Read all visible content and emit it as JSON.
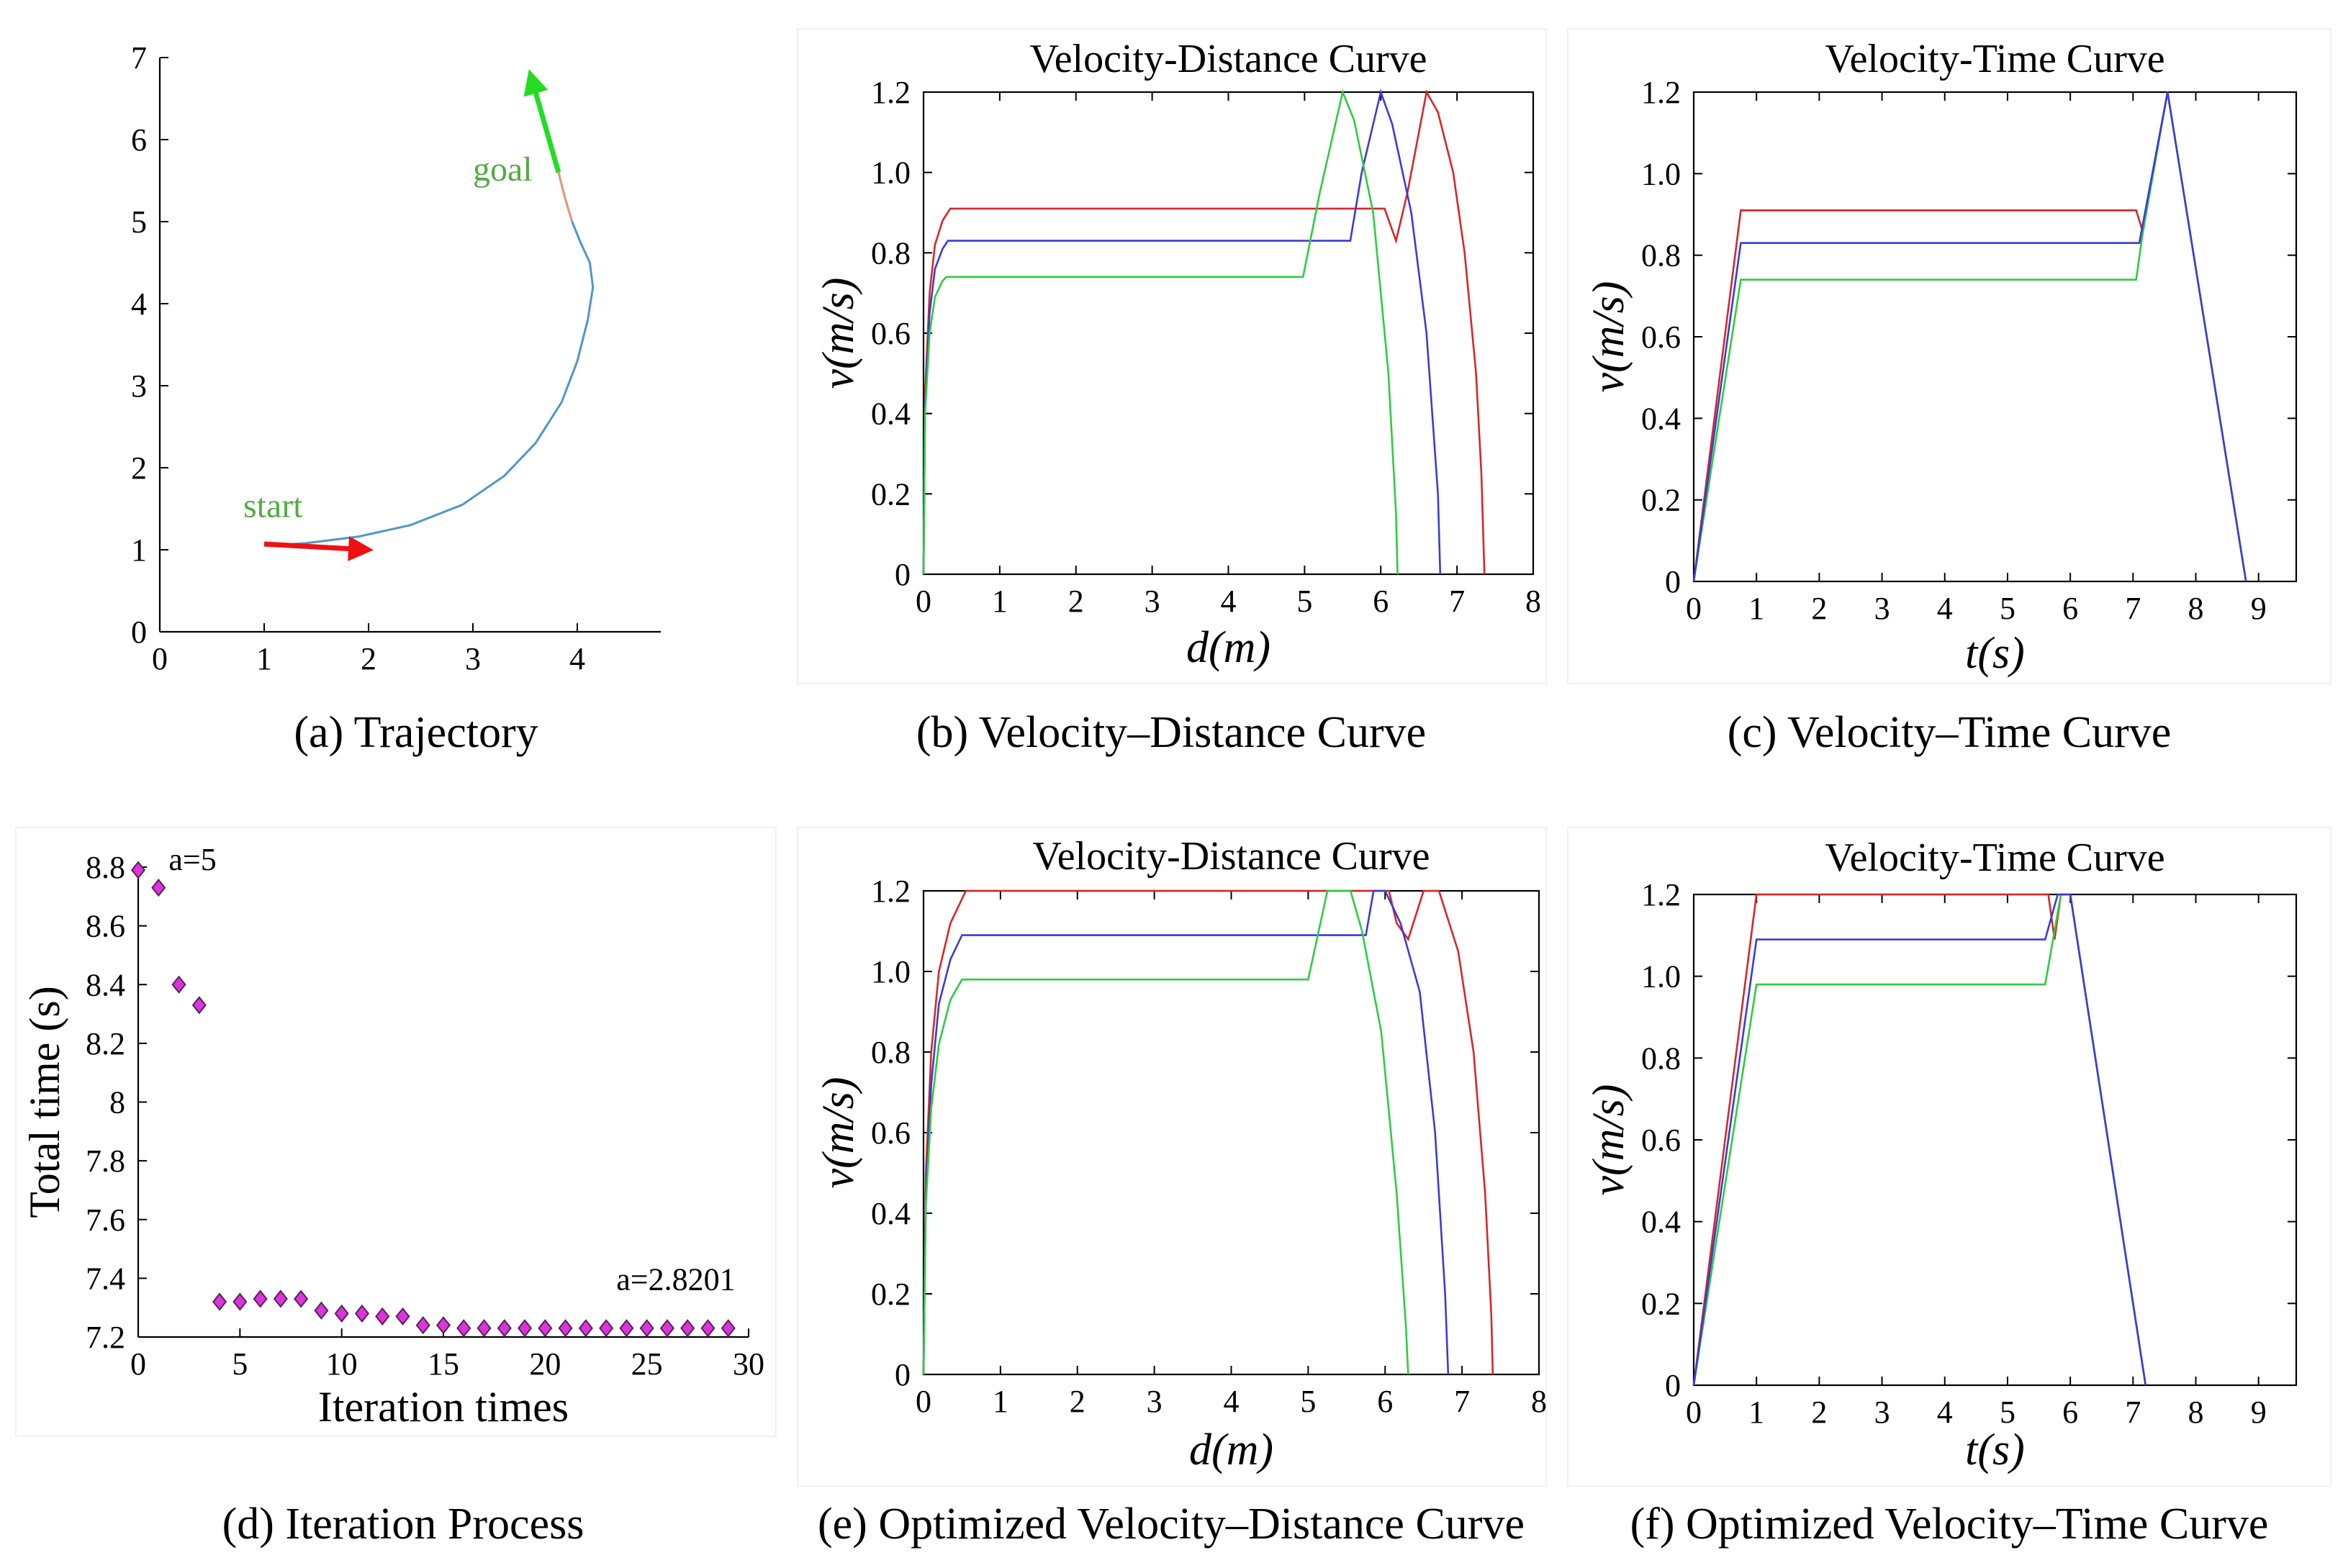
{
  "figure": {
    "type": "multi-panel figure"
  },
  "captions": {
    "a": "(a) Trajectory",
    "b": "(b) Velocity–Distance Curve",
    "c": "(c) Velocity–Time Curve",
    "d": "(d) Iteration Process",
    "e": "(e) Optimized Velocity–Distance Curve",
    "f": "(f) Optimized Velocity–Time Curve"
  },
  "colors": {
    "red": "#d62728",
    "green": "#2ecc40",
    "blue": "#3b3bd6",
    "traj": "#4f97c8",
    "arrow_red": "#ee1111",
    "arrow_green": "#22dd22",
    "marker": "#dd33dd",
    "label_green": "#55aa44"
  },
  "chart_data": [
    {
      "id": "a",
      "type": "line",
      "title": "",
      "xlabel": "",
      "ylabel": "",
      "xlim": [
        0,
        4.8
      ],
      "ylim": [
        0,
        7
      ],
      "xticks": [
        0,
        1,
        2,
        3,
        4
      ],
      "xtick_labels": [
        "0",
        "1",
        "2",
        "3",
        "4"
      ],
      "yticks": [
        0,
        1,
        2,
        3,
        4,
        5,
        6,
        7
      ],
      "ytick_labels": [
        "0",
        "1",
        "2",
        "3",
        "4",
        "5",
        "6",
        "7"
      ],
      "annotations": [
        {
          "text": "start",
          "x": 0.8,
          "y": 1.4
        },
        {
          "text": "goal",
          "x": 3.0,
          "y": 5.5
        }
      ],
      "series": [
        {
          "name": "trajectory",
          "x": [
            1.0,
            1.4,
            1.9,
            2.4,
            2.9,
            3.3,
            3.6,
            3.85,
            4.0,
            4.1,
            4.15,
            4.12,
            4.03,
            3.95,
            3.88,
            3.82
          ],
          "y": [
            1.05,
            1.08,
            1.16,
            1.3,
            1.55,
            1.9,
            2.3,
            2.8,
            3.3,
            3.8,
            4.2,
            4.5,
            4.75,
            5.0,
            5.3,
            5.6
          ]
        }
      ],
      "arrows": [
        {
          "name": "start-arrow",
          "from": [
            1.0,
            1.07
          ],
          "to": [
            2.0,
            1.0
          ]
        },
        {
          "name": "goal-arrow",
          "from": [
            3.82,
            5.6
          ],
          "to": [
            3.55,
            6.8
          ]
        }
      ]
    },
    {
      "id": "b",
      "type": "line",
      "title": "Velocity-Distance Curve",
      "xlabel": "d(m)",
      "ylabel": "v(m/s)",
      "xlim": [
        0,
        8
      ],
      "ylim": [
        0,
        1.2
      ],
      "xticks": [
        0,
        1,
        2,
        3,
        4,
        5,
        6,
        7,
        8
      ],
      "xtick_labels": [
        "0",
        "1",
        "2",
        "3",
        "4",
        "5",
        "6",
        "7",
        "8"
      ],
      "yticks": [
        0,
        0.2,
        0.4,
        0.6,
        0.8,
        1.0,
        1.2
      ],
      "ytick_labels": [
        "0",
        "0.2",
        "0.4",
        "0.6",
        "0.8",
        "1.0",
        "1.2"
      ],
      "series": [
        {
          "name": "red",
          "x": [
            0,
            0.02,
            0.08,
            0.15,
            0.25,
            0.35,
            6.05,
            6.2,
            6.35,
            6.6,
            6.75,
            6.95,
            7.1,
            7.25,
            7.32,
            7.36
          ],
          "y": [
            0,
            0.45,
            0.7,
            0.82,
            0.88,
            0.91,
            0.91,
            0.83,
            0.95,
            1.2,
            1.15,
            1.0,
            0.8,
            0.5,
            0.25,
            0
          ]
        },
        {
          "name": "blue",
          "x": [
            0,
            0.02,
            0.08,
            0.15,
            0.25,
            0.32,
            5.6,
            5.75,
            6.0,
            6.15,
            6.4,
            6.6,
            6.75,
            6.78
          ],
          "y": [
            0,
            0.42,
            0.65,
            0.76,
            0.81,
            0.83,
            0.83,
            1.0,
            1.2,
            1.12,
            0.9,
            0.6,
            0.2,
            0
          ]
        },
        {
          "name": "green",
          "x": [
            0,
            0.02,
            0.08,
            0.15,
            0.25,
            0.3,
            4.98,
            5.2,
            5.5,
            5.65,
            5.9,
            6.1,
            6.2,
            6.22
          ],
          "y": [
            0,
            0.4,
            0.6,
            0.69,
            0.73,
            0.74,
            0.74,
            0.95,
            1.2,
            1.13,
            0.9,
            0.5,
            0.15,
            0
          ]
        }
      ]
    },
    {
      "id": "c",
      "type": "line",
      "title": "Velocity-Time Curve",
      "xlabel": "t(s)",
      "ylabel": "v(m/s)",
      "xlim": [
        0,
        9.6
      ],
      "ylim": [
        0,
        1.2
      ],
      "xticks": [
        0,
        1,
        2,
        3,
        4,
        5,
        6,
        7,
        8,
        9
      ],
      "xtick_labels": [
        "0",
        "1",
        "2",
        "3",
        "4",
        "5",
        "6",
        "7",
        "8",
        "9"
      ],
      "yticks": [
        0,
        0.2,
        0.4,
        0.6,
        0.8,
        1.0,
        1.2
      ],
      "ytick_labels": [
        "0",
        "0.2",
        "0.4",
        "0.6",
        "0.8",
        "1.0",
        "1.2"
      ],
      "series": [
        {
          "name": "red",
          "x": [
            0,
            0.75,
            7.05,
            7.15,
            7.55,
            8.8
          ],
          "y": [
            0,
            0.91,
            0.91,
            0.86,
            1.2,
            0
          ]
        },
        {
          "name": "green",
          "x": [
            0,
            0.75,
            7.05,
            7.15,
            7.55,
            8.8
          ],
          "y": [
            0,
            0.74,
            0.74,
            0.85,
            1.2,
            0
          ]
        },
        {
          "name": "blue",
          "x": [
            0,
            0.75,
            7.1,
            7.55,
            8.8
          ],
          "y": [
            0,
            0.83,
            0.83,
            1.2,
            0
          ]
        }
      ]
    },
    {
      "id": "d",
      "type": "scatter",
      "title": "",
      "xlabel": "Iteration times",
      "ylabel": "Total time (s)",
      "xlim": [
        0,
        30
      ],
      "ylim": [
        7.2,
        8.8
      ],
      "xticks": [
        0,
        5,
        10,
        15,
        20,
        25,
        30
      ],
      "xtick_labels": [
        "0",
        "5",
        "10",
        "15",
        "20",
        "25",
        "30"
      ],
      "yticks": [
        7.2,
        7.4,
        7.6,
        7.8,
        8.0,
        8.2,
        8.4,
        8.6,
        8.8
      ],
      "ytick_labels": [
        "7.2",
        "7.4",
        "7.6",
        "7.8",
        "8",
        "8.2",
        "8.4",
        "8.6",
        "8.8"
      ],
      "annotations": [
        {
          "text": "a=5",
          "x": 1.5,
          "y": 8.79
        },
        {
          "text": "a=2.8201",
          "x": 23.5,
          "y": 7.36
        }
      ],
      "series": [
        {
          "name": "total-time",
          "x": [
            0,
            1,
            2,
            3,
            4,
            5,
            6,
            7,
            8,
            9,
            10,
            11,
            12,
            13,
            14,
            15,
            16,
            17,
            18,
            19,
            20,
            21,
            22,
            23,
            24,
            25,
            26,
            27,
            28,
            29
          ],
          "y": [
            8.79,
            8.73,
            8.4,
            8.33,
            7.32,
            7.32,
            7.33,
            7.33,
            7.33,
            7.29,
            7.28,
            7.28,
            7.27,
            7.27,
            7.24,
            7.24,
            7.23,
            7.23,
            7.23,
            7.23,
            7.23,
            7.23,
            7.23,
            7.23,
            7.23,
            7.23,
            7.23,
            7.23,
            7.23,
            7.23
          ]
        }
      ]
    },
    {
      "id": "e",
      "type": "line",
      "title": "Velocity-Distance Curve",
      "xlabel": "d(m)",
      "ylabel": "v(m/s)",
      "xlim": [
        0,
        8
      ],
      "ylim": [
        0,
        1.2
      ],
      "xticks": [
        0,
        1,
        2,
        3,
        4,
        5,
        6,
        7,
        8
      ],
      "xtick_labels": [
        "0",
        "1",
        "2",
        "3",
        "4",
        "5",
        "6",
        "7",
        "8"
      ],
      "yticks": [
        0,
        0.2,
        0.4,
        0.6,
        0.8,
        1.0,
        1.2
      ],
      "ytick_labels": [
        "0",
        "0.2",
        "0.4",
        "0.6",
        "0.8",
        "1.0",
        "1.2"
      ],
      "series": [
        {
          "name": "red",
          "x": [
            0,
            0.03,
            0.1,
            0.2,
            0.35,
            0.55,
            6.05,
            6.15,
            6.3,
            6.5,
            6.7,
            6.95,
            7.15,
            7.3,
            7.38,
            7.4
          ],
          "y": [
            0,
            0.5,
            0.8,
            1.0,
            1.12,
            1.2,
            1.2,
            1.12,
            1.08,
            1.2,
            1.2,
            1.05,
            0.8,
            0.45,
            0.15,
            0
          ]
        },
        {
          "name": "blue",
          "x": [
            0,
            0.03,
            0.1,
            0.2,
            0.35,
            0.5,
            5.75,
            5.85,
            6.0,
            6.2,
            6.45,
            6.65,
            6.78,
            6.82
          ],
          "y": [
            0,
            0.45,
            0.72,
            0.92,
            1.03,
            1.09,
            1.09,
            1.2,
            1.2,
            1.12,
            0.95,
            0.6,
            0.2,
            0
          ]
        },
        {
          "name": "green",
          "x": [
            0,
            0.03,
            0.1,
            0.2,
            0.35,
            0.5,
            5.0,
            5.25,
            5.55,
            5.7,
            5.95,
            6.15,
            6.27,
            6.3
          ],
          "y": [
            0,
            0.42,
            0.66,
            0.82,
            0.93,
            0.98,
            0.98,
            1.2,
            1.2,
            1.1,
            0.85,
            0.45,
            0.12,
            0
          ]
        }
      ]
    },
    {
      "id": "f",
      "type": "line",
      "title": "Velocity-Time Curve",
      "xlabel": "t(s)",
      "ylabel": "v(m/s)",
      "xlim": [
        0,
        9.6
      ],
      "ylim": [
        0,
        1.2
      ],
      "xticks": [
        0,
        1,
        2,
        3,
        4,
        5,
        6,
        7,
        8,
        9
      ],
      "xtick_labels": [
        "0",
        "1",
        "2",
        "3",
        "4",
        "5",
        "6",
        "7",
        "8",
        "9"
      ],
      "yticks": [
        0,
        0.2,
        0.4,
        0.6,
        0.8,
        1.0,
        1.2
      ],
      "ytick_labels": [
        "0",
        "0.2",
        "0.4",
        "0.6",
        "0.8",
        "1.0",
        "1.2"
      ],
      "series": [
        {
          "name": "red",
          "x": [
            0,
            1.0,
            5.65,
            5.75,
            5.85,
            6.0,
            7.2
          ],
          "y": [
            0,
            1.2,
            1.2,
            1.09,
            1.2,
            1.2,
            0
          ]
        },
        {
          "name": "green",
          "x": [
            0,
            1.0,
            5.6,
            5.85,
            6.0,
            7.2
          ],
          "y": [
            0,
            0.98,
            0.98,
            1.2,
            1.2,
            0
          ]
        },
        {
          "name": "blue",
          "x": [
            0,
            1.0,
            5.6,
            5.8,
            6.0,
            7.2
          ],
          "y": [
            0,
            1.09,
            1.09,
            1.2,
            1.2,
            0
          ]
        }
      ]
    }
  ]
}
